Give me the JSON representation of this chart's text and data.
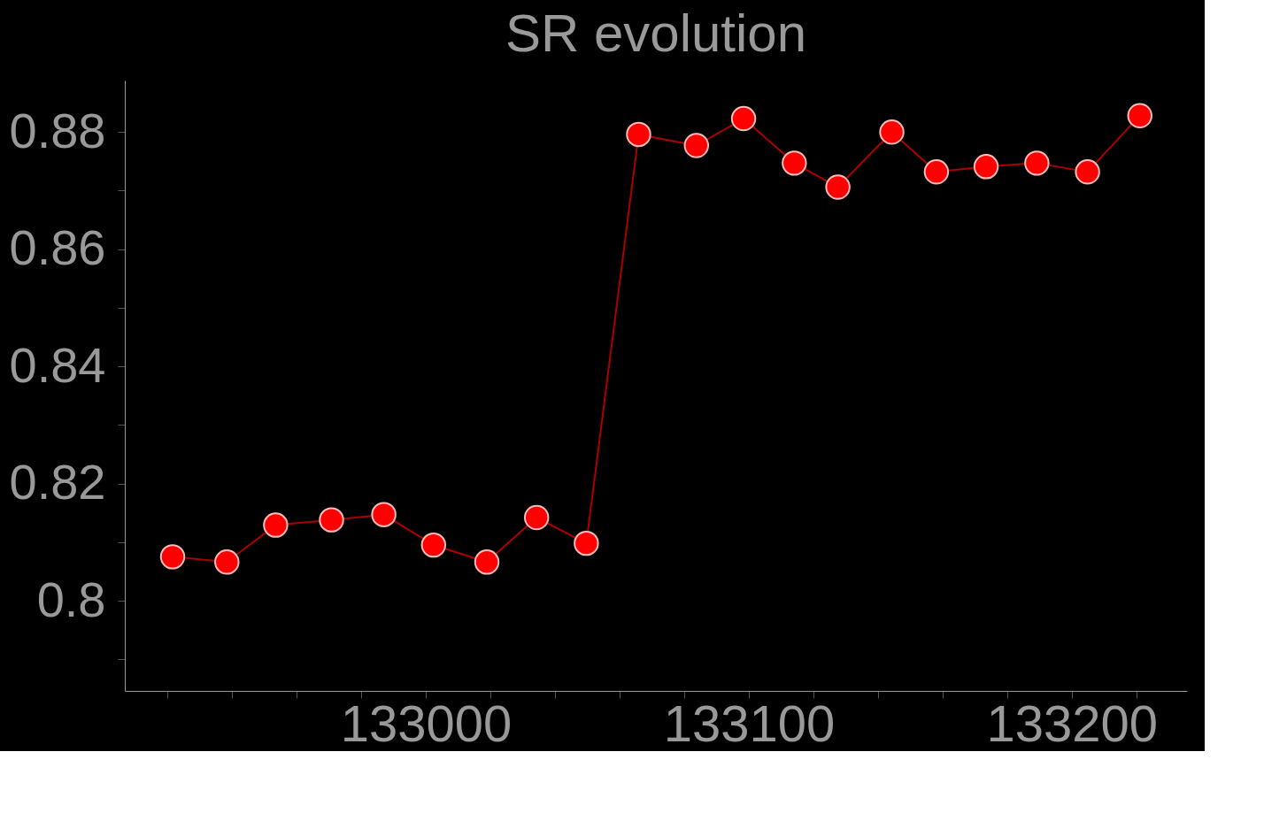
{
  "chart_data": {
    "type": "line",
    "title": "SR evolution",
    "x": [
      132921.6,
      132938.4,
      132953.5,
      132970.8,
      132987.0,
      133002.4,
      133018.9,
      133034.3,
      133049.7,
      133065.9,
      133083.8,
      133098.4,
      133114.1,
      133127.6,
      133144.3,
      133158.1,
      133173.5,
      133189.2,
      133204.9,
      133221.1
    ],
    "series": [
      {
        "color": "#ff0000",
        "values": [
          0.8075,
          0.8066,
          0.8129,
          0.8138,
          0.8147,
          0.8095,
          0.8066,
          0.8142,
          0.8098,
          0.8796,
          0.8777,
          0.8823,
          0.8747,
          0.8706,
          0.88,
          0.8732,
          0.8741,
          0.8747,
          0.8732,
          0.8828
        ]
      }
    ],
    "marker": "circle",
    "line_style": "solid",
    "xlim": [
      132906.8,
      133235.7
    ],
    "ylim": [
      0.7846,
      0.8888
    ],
    "xticks": [
      {
        "value": 132920,
        "label": null
      },
      {
        "value": 132940,
        "label": null
      },
      {
        "value": 132960,
        "label": null
      },
      {
        "value": 132980,
        "label": null
      },
      133000,
      {
        "value": 133020,
        "label": null
      },
      {
        "value": 133040,
        "label": null
      },
      {
        "value": 133060,
        "label": null
      },
      {
        "value": 133080,
        "label": null
      },
      133100,
      {
        "value": 133120,
        "label": null
      },
      {
        "value": 133140,
        "label": null
      },
      {
        "value": 133160,
        "label": null
      },
      {
        "value": 133180,
        "label": null
      },
      133200,
      {
        "value": 133220,
        "label": null
      }
    ],
    "yticks": [
      {
        "value": 0.79,
        "label": null
      },
      0.8,
      {
        "value": 0.81,
        "label": null
      },
      0.82,
      {
        "value": 0.83,
        "label": null
      },
      0.84,
      {
        "value": 0.85,
        "label": null
      },
      0.86,
      {
        "value": 0.87,
        "label": null
      },
      0.88
    ]
  }
}
